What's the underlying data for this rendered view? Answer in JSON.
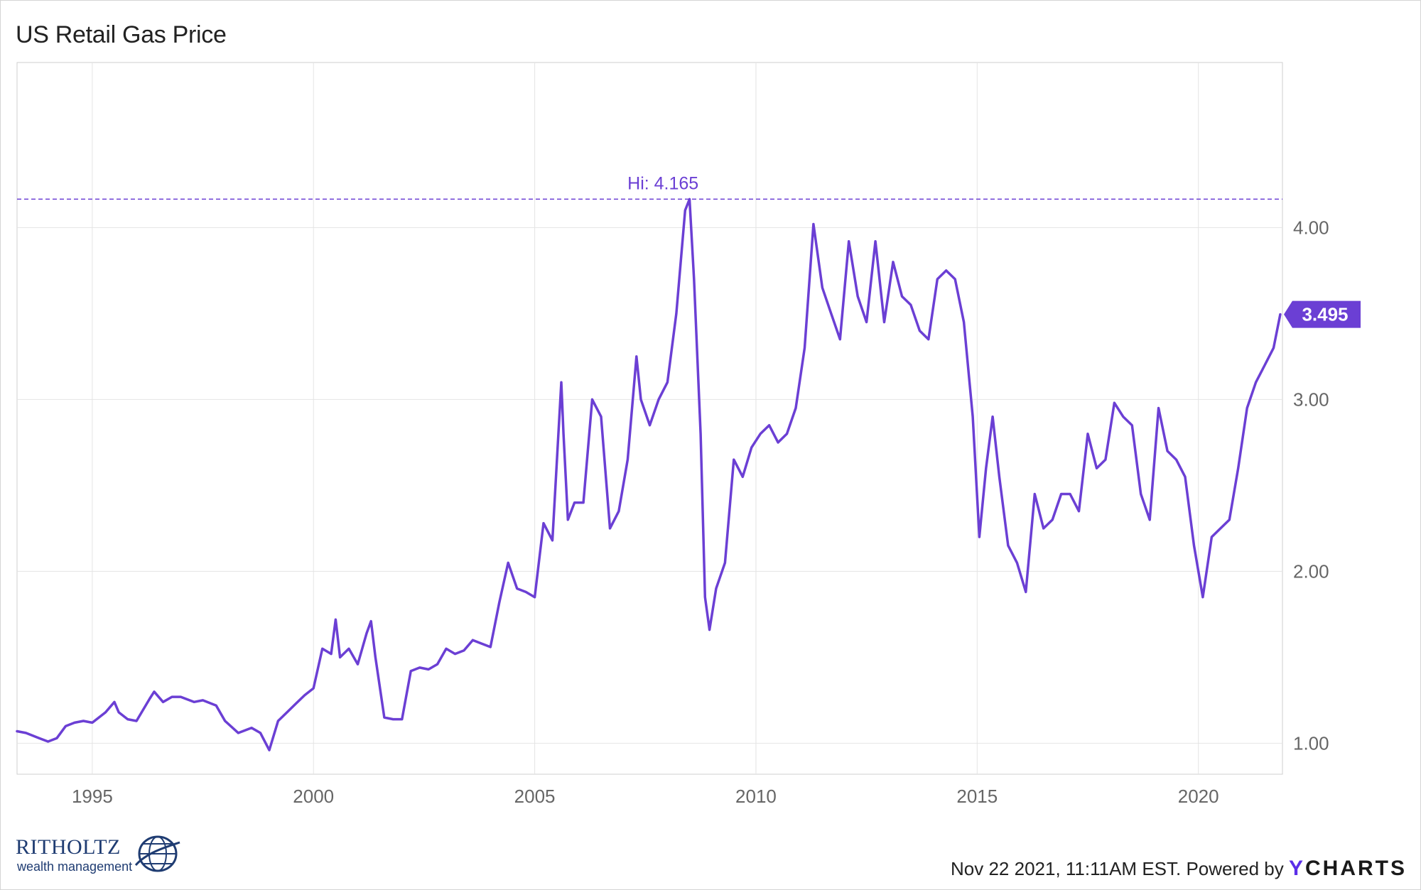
{
  "title": "US Retail Gas Price",
  "colors": {
    "line": "#6b3fd4",
    "grid": "#e4e4e4",
    "axis_text": "#666666",
    "label_bg": "#6b3fd4"
  },
  "footer": {
    "timestamp": "Nov 22 2021, 11:11AM EST. Powered by",
    "brand_y": "Y",
    "brand_rest": "CHARTS"
  },
  "logo": {
    "name": "RITHOLTZ",
    "subtitle": "wealth management",
    "icon": "globe-icon"
  },
  "chart_data": {
    "type": "line",
    "title": "US Retail Gas Price",
    "xlabel": "",
    "ylabel": "",
    "xlim": [
      1993.3,
      2021.9
    ],
    "ylim": [
      0.82,
      4.96
    ],
    "x_ticks": [
      1995,
      2000,
      2005,
      2010,
      2015,
      2020
    ],
    "x_tick_labels": [
      "1995",
      "2000",
      "2005",
      "2010",
      "2015",
      "2020"
    ],
    "y_ticks": [
      1.0,
      2.0,
      3.0,
      4.0
    ],
    "y_tick_labels": [
      "1.00",
      "2.00",
      "3.00",
      "4.00"
    ],
    "grid": true,
    "annotations": [
      {
        "type": "hline",
        "value": 4.165,
        "label": "Hi: 4.165",
        "label_x": 2007.9,
        "style": "dashed"
      },
      {
        "type": "last_value",
        "value": 3.495,
        "label": "3.495"
      }
    ],
    "series": [
      {
        "x": [
          1993.3,
          1993.5,
          1993.8,
          1994.0,
          1994.2,
          1994.4,
          1994.6,
          1994.8,
          1995.0,
          1995.3,
          1995.5,
          1995.6,
          1995.8,
          1996.0,
          1996.3,
          1996.4,
          1996.6,
          1996.8,
          1997.0,
          1997.3,
          1997.5,
          1997.8,
          1998.0,
          1998.3,
          1998.6,
          1998.8,
          1999.0,
          1999.2,
          1999.4,
          1999.6,
          1999.8,
          2000.0,
          2000.2,
          2000.4,
          2000.5,
          2000.6,
          2000.8,
          2001.0,
          2001.2,
          2001.3,
          2001.4,
          2001.6,
          2001.8,
          2002.0,
          2002.2,
          2002.4,
          2002.6,
          2002.8,
          2003.0,
          2003.2,
          2003.4,
          2003.6,
          2003.8,
          2004.0,
          2004.2,
          2004.4,
          2004.6,
          2004.8,
          2005.0,
          2005.2,
          2005.4,
          2005.6,
          2005.65,
          2005.75,
          2005.9,
          2006.1,
          2006.3,
          2006.5,
          2006.7,
          2006.9,
          2007.1,
          2007.3,
          2007.4,
          2007.6,
          2007.8,
          2008.0,
          2008.2,
          2008.4,
          2008.5,
          2008.6,
          2008.75,
          2008.85,
          2008.95,
          2009.1,
          2009.3,
          2009.5,
          2009.7,
          2009.9,
          2010.1,
          2010.3,
          2010.5,
          2010.7,
          2010.9,
          2011.1,
          2011.3,
          2011.5,
          2011.7,
          2011.9,
          2012.1,
          2012.3,
          2012.5,
          2012.7,
          2012.9,
          2013.1,
          2013.3,
          2013.5,
          2013.7,
          2013.9,
          2014.1,
          2014.3,
          2014.5,
          2014.7,
          2014.9,
          2015.05,
          2015.2,
          2015.35,
          2015.5,
          2015.7,
          2015.9,
          2016.1,
          2016.3,
          2016.5,
          2016.7,
          2016.9,
          2017.1,
          2017.3,
          2017.5,
          2017.7,
          2017.9,
          2018.1,
          2018.3,
          2018.5,
          2018.7,
          2018.9,
          2019.1,
          2019.3,
          2019.5,
          2019.7,
          2019.9,
          2020.1,
          2020.3,
          2020.5,
          2020.7,
          2020.9,
          2021.1,
          2021.3,
          2021.5,
          2021.7,
          2021.85
        ],
        "y": [
          1.07,
          1.06,
          1.03,
          1.01,
          1.03,
          1.1,
          1.12,
          1.13,
          1.12,
          1.18,
          1.24,
          1.18,
          1.14,
          1.13,
          1.26,
          1.3,
          1.24,
          1.27,
          1.27,
          1.24,
          1.25,
          1.22,
          1.13,
          1.06,
          1.09,
          1.06,
          0.96,
          1.13,
          1.18,
          1.23,
          1.28,
          1.32,
          1.55,
          1.52,
          1.72,
          1.5,
          1.55,
          1.46,
          1.64,
          1.71,
          1.5,
          1.15,
          1.14,
          1.14,
          1.42,
          1.44,
          1.43,
          1.46,
          1.55,
          1.52,
          1.54,
          1.6,
          1.58,
          1.56,
          1.82,
          2.05,
          1.9,
          1.88,
          1.85,
          2.28,
          2.18,
          3.1,
          2.8,
          2.3,
          2.4,
          2.4,
          3.0,
          2.9,
          2.25,
          2.35,
          2.65,
          3.25,
          3.0,
          2.85,
          3.0,
          3.1,
          3.5,
          4.1,
          4.165,
          3.7,
          2.8,
          1.85,
          1.66,
          1.9,
          2.05,
          2.65,
          2.55,
          2.72,
          2.8,
          2.85,
          2.75,
          2.8,
          2.95,
          3.3,
          4.02,
          3.65,
          3.5,
          3.35,
          3.92,
          3.6,
          3.45,
          3.92,
          3.45,
          3.8,
          3.6,
          3.55,
          3.4,
          3.35,
          3.7,
          3.75,
          3.7,
          3.45,
          2.9,
          2.2,
          2.6,
          2.9,
          2.55,
          2.15,
          2.05,
          1.88,
          2.45,
          2.25,
          2.3,
          2.45,
          2.45,
          2.35,
          2.8,
          2.6,
          2.65,
          2.98,
          2.9,
          2.85,
          2.45,
          2.3,
          2.95,
          2.7,
          2.65,
          2.55,
          2.15,
          1.85,
          2.2,
          2.25,
          2.3,
          2.6,
          2.95,
          3.1,
          3.2,
          3.3,
          3.495
        ]
      }
    ]
  }
}
